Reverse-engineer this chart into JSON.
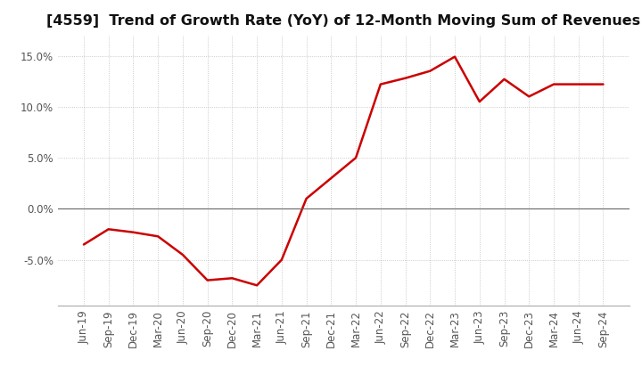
{
  "title": "[4559]  Trend of Growth Rate (YoY) of 12-Month Moving Sum of Revenues",
  "x_labels": [
    "Jun-19",
    "Sep-19",
    "Dec-19",
    "Mar-20",
    "Jun-20",
    "Sep-20",
    "Dec-20",
    "Mar-21",
    "Jun-21",
    "Sep-21",
    "Dec-21",
    "Mar-22",
    "Jun-22",
    "Sep-22",
    "Dec-22",
    "Mar-23",
    "Jun-23",
    "Sep-23",
    "Dec-23",
    "Mar-24",
    "Jun-24",
    "Sep-24"
  ],
  "y_values": [
    -3.5,
    -2.0,
    -2.3,
    -2.7,
    -4.5,
    -7.0,
    -6.8,
    -7.5,
    -5.0,
    1.0,
    3.0,
    5.0,
    12.2,
    12.8,
    13.5,
    14.9,
    10.5,
    12.7,
    11.0,
    12.2,
    12.2,
    12.2
  ],
  "line_color": "#cc0000",
  "line_width": 1.8,
  "ylim": [
    -9.5,
    17.0
  ],
  "yticks": [
    -5.0,
    0.0,
    5.0,
    10.0,
    15.0
  ],
  "ytick_labels": [
    "-5.0%",
    "0.0%",
    "5.0%",
    "10.0%",
    "15.0%"
  ],
  "background_color": "#ffffff",
  "plot_background": "#ffffff",
  "grid_color": "#bbbbbb",
  "title_fontsize": 11.5,
  "tick_fontsize": 8.5,
  "zero_line_color": "#666666"
}
